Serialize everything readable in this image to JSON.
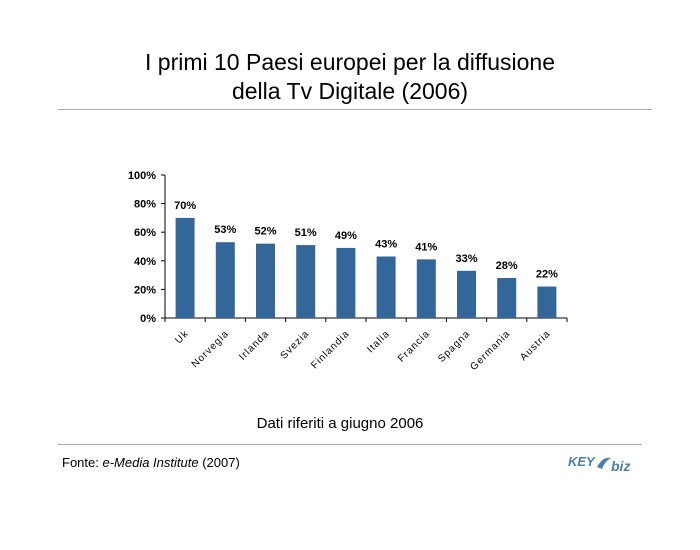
{
  "title_line1": "I primi 10 Paesi europei per la diffusione",
  "title_line2": "della Tv Digitale (2006)",
  "note": "Dati riferiti a giugno 2006",
  "source": {
    "prefix": "Fonte: ",
    "name": "e-Media Institute",
    "suffix": " (2007)"
  },
  "logo": {
    "text_key": "KEY",
    "text_biz": "biz",
    "color": "#4a7fb0"
  },
  "chart_data": {
    "type": "bar",
    "categories": [
      "Uk",
      "Norvegia",
      "Irlanda",
      "Svezia",
      "Finlandia",
      "Italia",
      "Francia",
      "Spagna",
      "Germania",
      "Austria"
    ],
    "values": [
      70,
      53,
      52,
      51,
      49,
      43,
      41,
      33,
      28,
      22
    ],
    "value_labels": [
      "70%",
      "53%",
      "52%",
      "51%",
      "49%",
      "43%",
      "41%",
      "33%",
      "28%",
      "22%"
    ],
    "ylim": [
      0,
      100
    ],
    "y_ticks": [
      0,
      20,
      40,
      60,
      80,
      100
    ],
    "y_tick_labels": [
      "0%",
      "20%",
      "40%",
      "60%",
      "80%",
      "100%"
    ],
    "grid": false,
    "bar_color": "#336699"
  }
}
